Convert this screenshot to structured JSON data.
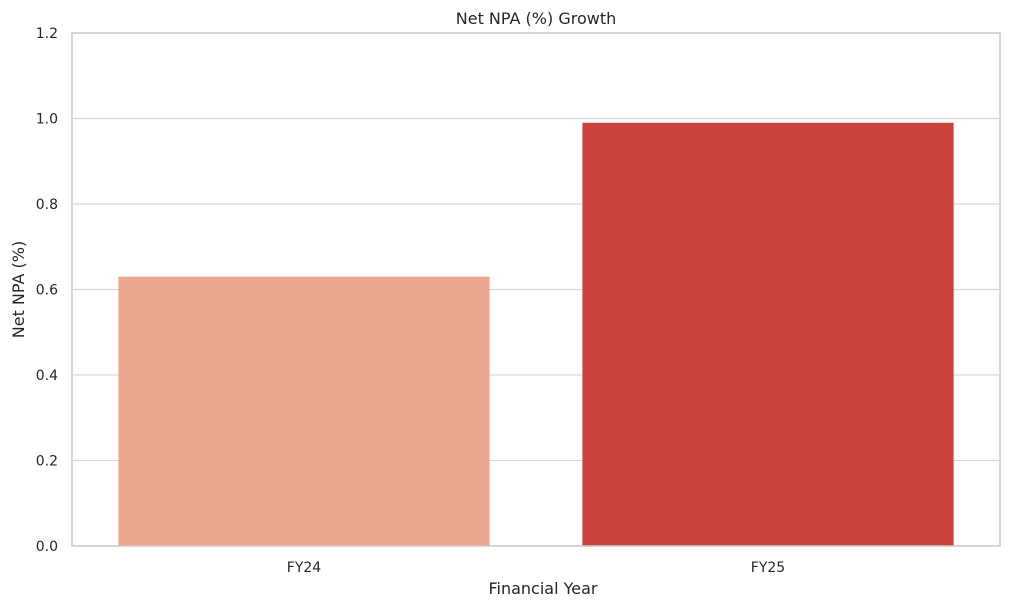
{
  "chart_data": {
    "type": "bar",
    "title": "Net NPA (%) Growth",
    "xlabel": "Financial Year",
    "ylabel": "Net NPA (%)",
    "categories": [
      "FY24",
      "FY25"
    ],
    "values": [
      0.63,
      0.99
    ],
    "colors": [
      "#eca690",
      "#c9433c"
    ],
    "ylim": [
      0,
      1.2
    ],
    "yticks": [
      "0.0",
      "0.2",
      "0.4",
      "0.6",
      "0.8",
      "1.0",
      "1.2"
    ],
    "grid": "horizontal",
    "legend": "none"
  }
}
